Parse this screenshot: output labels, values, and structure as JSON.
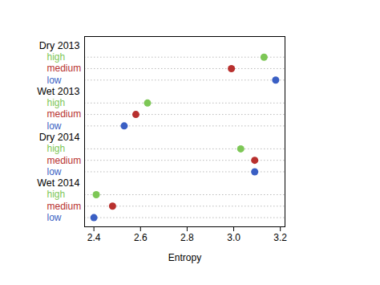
{
  "chart_data": {
    "type": "dot",
    "x_label": "Entropy",
    "categories": [
      "Dry 2013",
      "Wet 2013",
      "Dry 2014",
      "Wet 2014"
    ],
    "series": [
      {
        "name": "high",
        "color": "#7dc756",
        "values": [
          3.13,
          2.63,
          3.03,
          2.41
        ]
      },
      {
        "name": "medium",
        "color": "#b8302e",
        "values": [
          2.99,
          2.58,
          3.09,
          2.48
        ]
      },
      {
        "name": "low",
        "color": "#3a5fc4",
        "values": [
          3.18,
          2.53,
          3.09,
          2.4
        ]
      }
    ],
    "xlim": [
      2.36,
      3.22
    ],
    "xticks": [
      2.4,
      2.6,
      2.8,
      {
        "value": 3,
        "label": "3.0"
      },
      3.2
    ]
  }
}
